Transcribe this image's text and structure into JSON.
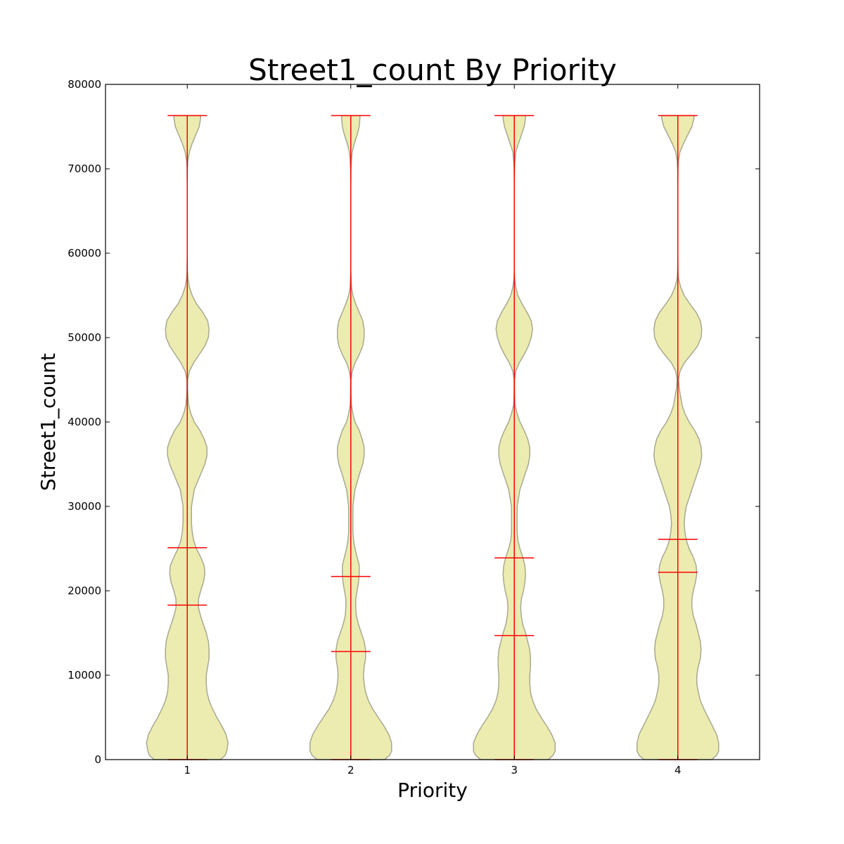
{
  "chart_data": {
    "type": "violin",
    "title": "Street1_count By Priority",
    "xlabel": "Priority",
    "ylabel": "Street1_count",
    "ylim": [
      0,
      80000
    ],
    "yticks": [
      0,
      10000,
      20000,
      30000,
      40000,
      50000,
      60000,
      70000,
      80000
    ],
    "ytick_labels": [
      "0",
      "10000",
      "20000",
      "30000",
      "40000",
      "50000",
      "60000",
      "70000",
      "80000"
    ],
    "categories": [
      "1",
      "2",
      "3",
      "4"
    ],
    "x_positions": [
      1,
      2,
      3,
      4
    ],
    "xlim": [
      0.5,
      4.5
    ],
    "grid": false,
    "colors": {
      "violin_fill": "#ECECB1",
      "violin_edge": "#A8A890",
      "stats": "#FF0000"
    },
    "violins": [
      {
        "category": "1",
        "min": 0,
        "max": 76300,
        "median": 18300,
        "mean": 25100,
        "density_y": [
          0,
          500,
          1000,
          2000,
          3000,
          4000,
          5000,
          6000,
          7000,
          8000,
          9000,
          10000,
          11000,
          12000,
          13000,
          14000,
          15000,
          16000,
          17000,
          18000,
          19000,
          20000,
          21000,
          22000,
          23000,
          24000,
          25000,
          26000,
          27000,
          28000,
          29000,
          30000,
          32000,
          34000,
          35000,
          36000,
          37000,
          38000,
          39000,
          40000,
          41000,
          42000,
          43000,
          44000,
          45000,
          46000,
          47000,
          48000,
          49000,
          50000,
          51000,
          52000,
          53000,
          54000,
          55000,
          56000,
          57000,
          58000,
          60000,
          62000,
          64000,
          66000,
          68000,
          70000,
          71000,
          72000,
          73000,
          74000,
          75000,
          76000,
          76300
        ],
        "half_width": [
          47,
          54,
          56,
          58,
          55,
          49,
          42,
          36,
          31,
          28,
          27,
          27,
          29,
          31,
          31,
          30,
          27,
          23,
          19,
          16,
          16,
          19,
          23,
          25,
          24,
          19,
          13,
          9,
          7,
          6,
          6,
          6,
          10,
          20,
          25,
          28,
          28,
          24,
          18,
          10,
          5,
          2,
          1,
          0.5,
          0.5,
          3,
          9,
          17,
          25,
          30,
          31,
          29,
          22,
          13,
          7,
          3,
          1,
          0.3,
          0,
          0,
          0,
          0,
          0,
          0.3,
          1,
          3,
          7,
          12,
          17,
          19,
          19
        ]
      },
      {
        "category": "2",
        "min": 0,
        "max": 76300,
        "median": 12800,
        "mean": 21700,
        "density_y": [
          0,
          500,
          1000,
          2000,
          3000,
          4000,
          5000,
          6000,
          7000,
          8000,
          9000,
          10000,
          11000,
          12000,
          13000,
          14000,
          15000,
          16000,
          17000,
          18000,
          19000,
          20000,
          21000,
          22000,
          23000,
          24000,
          25000,
          26000,
          27000,
          28000,
          29000,
          30000,
          32000,
          34000,
          35000,
          36000,
          37000,
          38000,
          39000,
          40000,
          41000,
          42000,
          43000,
          44000,
          45000,
          46000,
          47000,
          48000,
          49000,
          50000,
          51000,
          52000,
          53000,
          54000,
          55000,
          56000,
          57000,
          58000,
          60000,
          62000,
          64000,
          66000,
          68000,
          70000,
          71000,
          72000,
          73000,
          74000,
          75000,
          76000,
          76300
        ],
        "half_width": [
          48,
          55,
          58,
          58,
          54,
          47,
          39,
          31,
          25,
          21,
          19,
          18,
          19,
          21,
          21,
          19,
          15,
          11,
          8,
          7,
          7,
          9,
          11,
          12,
          12,
          9,
          6,
          4,
          3,
          3,
          3,
          3,
          6,
          13,
          17,
          19,
          19,
          16,
          12,
          6,
          3,
          1,
          0.5,
          0.3,
          0.3,
          2,
          6,
          12,
          17,
          19,
          19,
          17,
          12,
          7,
          3,
          1,
          0.5,
          0,
          0,
          0,
          0,
          0,
          0,
          0.3,
          1,
          2,
          5,
          9,
          12,
          13,
          13
        ]
      },
      {
        "category": "3",
        "min": 0,
        "max": 76300,
        "median": 14700,
        "mean": 23900,
        "density_y": [
          0,
          500,
          1000,
          2000,
          3000,
          4000,
          5000,
          6000,
          7000,
          8000,
          9000,
          10000,
          11000,
          12000,
          13000,
          14000,
          15000,
          16000,
          17000,
          18000,
          19000,
          20000,
          21000,
          22000,
          23000,
          24000,
          25000,
          26000,
          27000,
          28000,
          29000,
          30000,
          32000,
          34000,
          35000,
          36000,
          37000,
          38000,
          39000,
          40000,
          41000,
          42000,
          43000,
          44000,
          45000,
          46000,
          47000,
          48000,
          49000,
          50000,
          51000,
          52000,
          53000,
          54000,
          55000,
          56000,
          57000,
          58000,
          60000,
          62000,
          64000,
          66000,
          68000,
          70000,
          71000,
          72000,
          73000,
          74000,
          75000,
          76000,
          76300
        ],
        "half_width": [
          48,
          55,
          58,
          58,
          53,
          46,
          38,
          31,
          26,
          23,
          22,
          22,
          23,
          23,
          22,
          19,
          16,
          12,
          10,
          9,
          10,
          13,
          15,
          16,
          15,
          12,
          8,
          5,
          4,
          4,
          4,
          4,
          8,
          16,
          20,
          22,
          22,
          19,
          14,
          8,
          4,
          1,
          0.5,
          0.3,
          0.3,
          2,
          7,
          14,
          20,
          24,
          26,
          24,
          18,
          11,
          5,
          2,
          0.5,
          0,
          0,
          0,
          0,
          0,
          0,
          0.3,
          1,
          2,
          6,
          10,
          14,
          16,
          16
        ]
      },
      {
        "category": "4",
        "min": 0,
        "max": 76300,
        "median": 22200,
        "mean": 26100,
        "density_y": [
          0,
          500,
          1000,
          2000,
          3000,
          4000,
          5000,
          6000,
          7000,
          8000,
          9000,
          10000,
          11000,
          12000,
          13000,
          14000,
          15000,
          16000,
          17000,
          18000,
          19000,
          20000,
          21000,
          22000,
          23000,
          24000,
          25000,
          26000,
          27000,
          28000,
          29000,
          30000,
          32000,
          34000,
          35000,
          36000,
          37000,
          38000,
          39000,
          40000,
          41000,
          42000,
          43000,
          44000,
          45000,
          46000,
          47000,
          48000,
          49000,
          50000,
          51000,
          52000,
          53000,
          54000,
          55000,
          56000,
          57000,
          58000,
          60000,
          62000,
          64000,
          66000,
          68000,
          70000,
          71000,
          72000,
          73000,
          74000,
          75000,
          76000,
          76300
        ],
        "half_width": [
          48,
          55,
          58,
          58,
          55,
          49,
          43,
          37,
          32,
          29,
          27,
          27,
          29,
          32,
          33,
          32,
          29,
          26,
          22,
          20,
          20,
          22,
          25,
          27,
          26,
          22,
          16,
          12,
          10,
          9,
          10,
          12,
          20,
          28,
          32,
          34,
          33,
          30,
          24,
          16,
          10,
          6,
          4,
          2,
          1,
          3,
          9,
          19,
          28,
          33,
          34,
          32,
          26,
          17,
          9,
          4,
          1,
          0.3,
          0,
          0,
          0,
          0,
          0,
          0.3,
          1,
          3,
          8,
          14,
          20,
          23,
          23
        ]
      }
    ]
  }
}
